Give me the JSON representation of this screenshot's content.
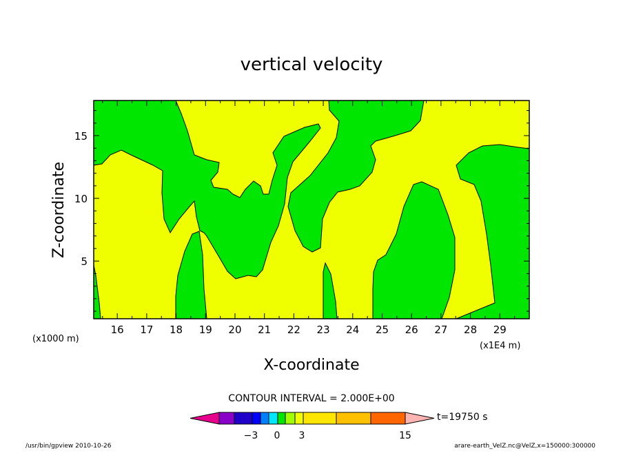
{
  "chart_data": {
    "type": "contour",
    "title": "vertical velocity",
    "xlabel": "X-coordinate",
    "ylabel": "Z-coordinate",
    "x_offset_label": "(x1000 m)",
    "x_unit_label": "(x1E4 m)",
    "x_ticks": [
      "16",
      "17",
      "18",
      "19",
      "20",
      "21",
      "22",
      "23",
      "24",
      "25",
      "26",
      "27",
      "28",
      "29"
    ],
    "y_ticks": [
      "5",
      "10",
      "15"
    ],
    "xlim": [
      15.2,
      30.0
    ],
    "ylim": [
      0.4,
      17.8
    ],
    "contour_interval_text": "CONTOUR INTERVAL = 2.000E+00",
    "time_text": "t=19750 s",
    "legend": {
      "labels": [
        {
          "value": -3,
          "text": "−3"
        },
        {
          "value": 0,
          "text": "0"
        },
        {
          "value": 3,
          "text": "3"
        },
        {
          "value": 15,
          "text": "15"
        }
      ],
      "colors": [
        "#e6008c",
        "#8a00c8",
        "#2000c8",
        "#0000ff",
        "#0080ff",
        "#00e6ff",
        "#00e600",
        "#a0ff00",
        "#f0ff00",
        "#ffe600",
        "#ffc000",
        "#ff6600",
        "#ff1a1a",
        "#ff7878",
        "#ffb4b4"
      ]
    },
    "fill_colors": {
      "positive": "#f0ff00",
      "negative": "#00e600"
    },
    "footer_left": "/usr/bin/gpview   2010-10-26",
    "footer_right": "arare-earth_VelZ.nc@VelZ,x=150000:300000"
  }
}
